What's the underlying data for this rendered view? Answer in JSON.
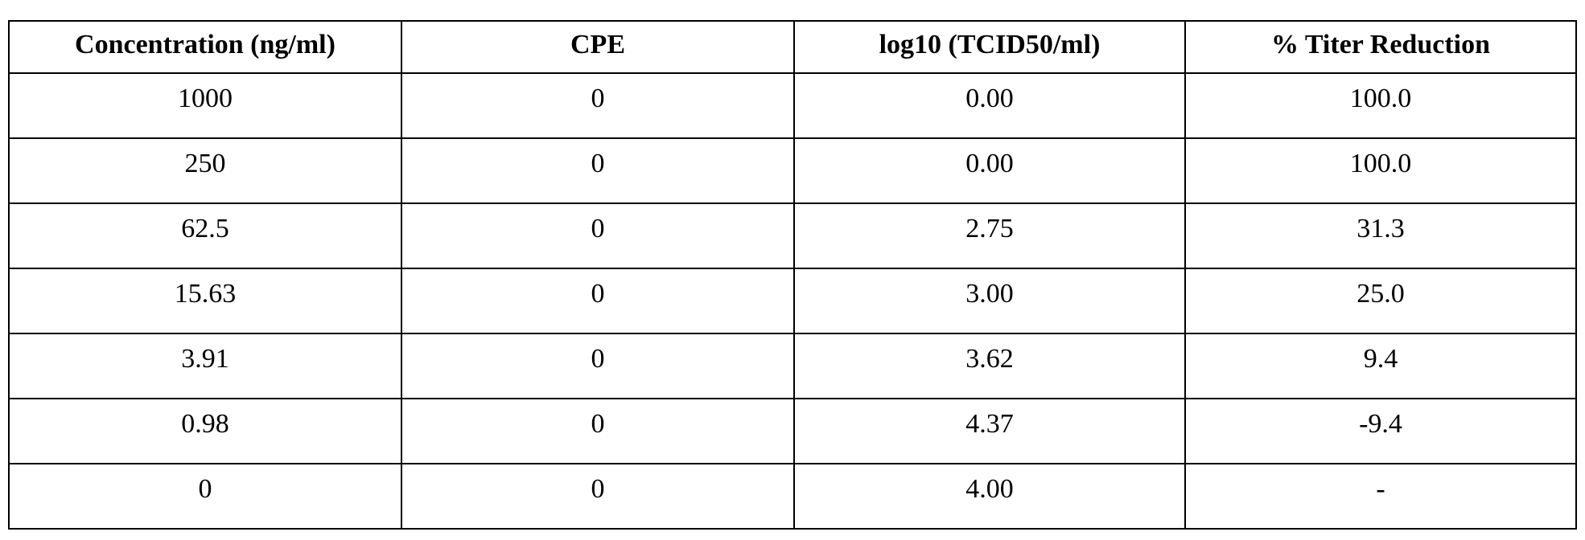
{
  "table": {
    "headers": [
      "Concentration (ng/ml)",
      "CPE",
      "log10 (TCID50/ml)",
      "% Titer Reduction"
    ],
    "rows": [
      [
        "1000",
        "0",
        "0.00",
        "100.0"
      ],
      [
        "250",
        "0",
        "0.00",
        "100.0"
      ],
      [
        "62.5",
        "0",
        "2.75",
        "31.3"
      ],
      [
        "15.63",
        "0",
        "3.00",
        "25.0"
      ],
      [
        "3.91",
        "0",
        "3.62",
        "9.4"
      ],
      [
        "0.98",
        "0",
        "4.37",
        "-9.4"
      ],
      [
        "0",
        "0",
        "4.00",
        "-"
      ]
    ]
  }
}
